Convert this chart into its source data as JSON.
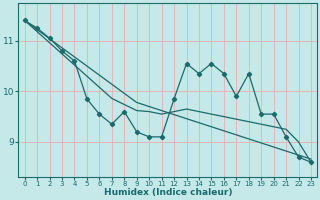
{
  "xlabel": "Humidex (Indice chaleur)",
  "bg_color": "#c5e8e8",
  "grid_color": "#e8b4b4",
  "line_color": "#1a6b6b",
  "x_data": [
    0,
    1,
    2,
    3,
    4,
    5,
    6,
    7,
    8,
    9,
    10,
    11,
    12,
    13,
    14,
    15,
    16,
    17,
    18,
    19,
    20,
    21,
    22,
    23
  ],
  "y_main": [
    11.4,
    11.25,
    11.05,
    10.8,
    10.6,
    9.85,
    9.55,
    9.35,
    9.6,
    9.2,
    9.1,
    9.1,
    9.85,
    10.55,
    10.35,
    10.55,
    10.35,
    9.9,
    10.35,
    9.55,
    9.55,
    9.1,
    8.7,
    8.6
  ],
  "y_trend1": [
    11.4,
    11.22,
    11.04,
    10.86,
    10.68,
    10.5,
    10.32,
    10.14,
    9.96,
    9.78,
    9.7,
    9.62,
    9.54,
    9.46,
    9.38,
    9.3,
    9.22,
    9.14,
    9.06,
    8.98,
    8.9,
    8.82,
    8.74,
    8.66
  ],
  "y_trend2": [
    11.4,
    11.18,
    10.96,
    10.74,
    10.52,
    10.3,
    10.08,
    9.86,
    9.74,
    9.62,
    9.6,
    9.55,
    9.6,
    9.65,
    9.6,
    9.55,
    9.5,
    9.45,
    9.4,
    9.35,
    9.3,
    9.25,
    9.0,
    8.6
  ],
  "ylim": [
    8.3,
    11.75
  ],
  "xlim": [
    -0.5,
    23.5
  ],
  "yticks": [
    9,
    10,
    11
  ],
  "xticks": [
    0,
    1,
    2,
    3,
    4,
    5,
    6,
    7,
    8,
    9,
    10,
    11,
    12,
    13,
    14,
    15,
    16,
    17,
    18,
    19,
    20,
    21,
    22,
    23
  ]
}
